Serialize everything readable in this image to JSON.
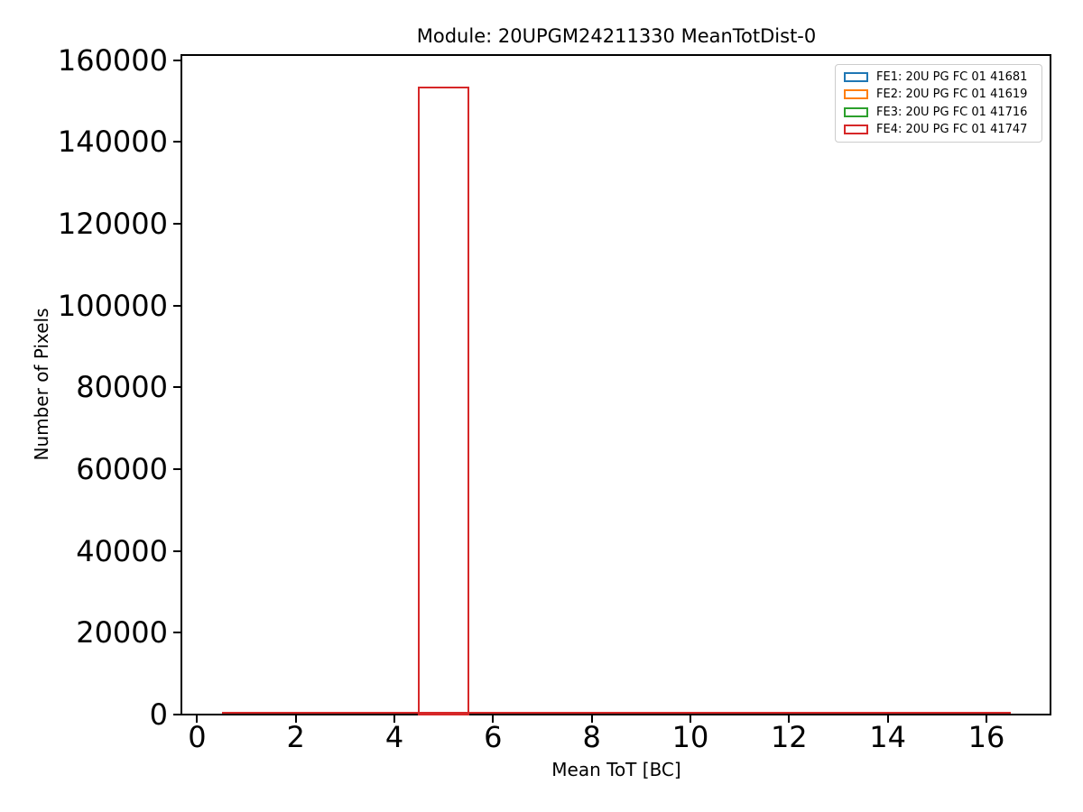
{
  "title": "Module: 20UPGM24211330 MeanTotDist-0",
  "axes": {
    "xlabel": "Mean ToT [BC]",
    "ylabel": "Number of Pixels",
    "xlim": [
      -0.3,
      17.3
    ],
    "ylim": [
      0,
      161500
    ],
    "xticks": [
      {
        "label": "0",
        "value": 0
      },
      {
        "label": "2",
        "value": 2
      },
      {
        "label": "4",
        "value": 4
      },
      {
        "label": "6",
        "value": 6
      },
      {
        "label": "8",
        "value": 8
      },
      {
        "label": "10",
        "value": 10
      },
      {
        "label": "12",
        "value": 12
      },
      {
        "label": "14",
        "value": 14
      },
      {
        "label": "16",
        "value": 16
      }
    ],
    "yticks": [
      {
        "label": "0",
        "value": 0
      },
      {
        "label": "20000",
        "value": 20000
      },
      {
        "label": "40000",
        "value": 40000
      },
      {
        "label": "60000",
        "value": 60000
      },
      {
        "label": "80000",
        "value": 80000
      },
      {
        "label": "100000",
        "value": 100000
      },
      {
        "label": "120000",
        "value": 120000
      },
      {
        "label": "140000",
        "value": 140000
      },
      {
        "label": "160000",
        "value": 160000
      }
    ]
  },
  "legend": {
    "items": [
      {
        "label": "FE1: 20U PG FC 01 41681",
        "color": "#1f77b4"
      },
      {
        "label": "FE2: 20U PG FC 01 41619",
        "color": "#ff7f0e"
      },
      {
        "label": "FE3: 20U PG FC 01 41716",
        "color": "#2ca02c"
      },
      {
        "label": "FE4: 20U PG FC 01 41747",
        "color": "#d62728"
      }
    ]
  },
  "chart_data": {
    "type": "bar",
    "subtype": "step-histogram-outline",
    "title": "Module: 20UPGM24211330 MeanTotDist-0",
    "xlabel": "Mean ToT [BC]",
    "ylabel": "Number of Pixels",
    "xlim": [
      -0.3,
      17.3
    ],
    "ylim": [
      0,
      161500
    ],
    "grid": false,
    "legend_position": "upper right",
    "bin_edges": [
      0.5,
      1.5,
      2.5,
      3.5,
      4.5,
      5.5,
      6.5,
      7.5,
      8.5,
      9.5,
      10.5,
      11.5,
      12.5,
      13.5,
      14.5,
      15.5,
      16.5
    ],
    "series": [
      {
        "name": "FE1: 20U PG FC 01 41681",
        "color": "#1f77b4",
        "counts": [
          0,
          0,
          0,
          0,
          153500,
          0,
          0,
          0,
          0,
          0,
          0,
          0,
          0,
          0,
          0,
          0
        ]
      },
      {
        "name": "FE2: 20U PG FC 01 41619",
        "color": "#ff7f0e",
        "counts": [
          0,
          0,
          0,
          0,
          153500,
          0,
          0,
          0,
          0,
          0,
          0,
          0,
          0,
          0,
          0,
          0
        ]
      },
      {
        "name": "FE3: 20U PG FC 01 41716",
        "color": "#2ca02c",
        "counts": [
          0,
          0,
          0,
          0,
          153500,
          0,
          0,
          0,
          0,
          0,
          0,
          0,
          0,
          0,
          0,
          0
        ]
      },
      {
        "name": "FE4: 20U PG FC 01 41747",
        "color": "#d62728",
        "counts": [
          0,
          0,
          0,
          0,
          153500,
          0,
          0,
          0,
          0,
          0,
          0,
          0,
          0,
          0,
          0,
          0
        ]
      }
    ]
  }
}
